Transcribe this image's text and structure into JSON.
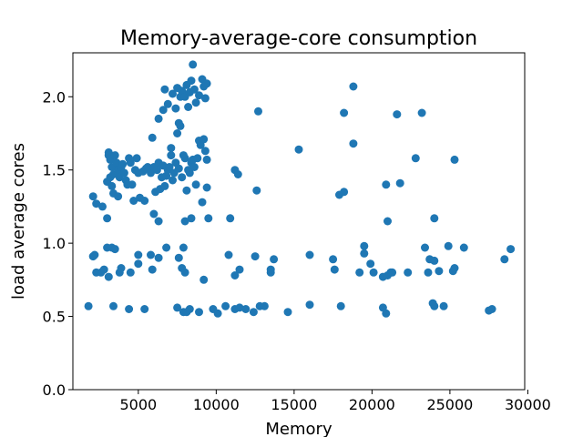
{
  "chart_data": {
    "type": "scatter",
    "title": "Memory-average-core consumption",
    "xlabel": "Memory",
    "ylabel": "load average cores",
    "xlim": [
      800,
      29800
    ],
    "ylim": [
      0.0,
      2.3
    ],
    "xticks": [
      5000,
      10000,
      15000,
      20000,
      25000,
      30000
    ],
    "yticks": [
      0.0,
      0.5,
      1.0,
      1.5,
      2.0
    ],
    "grid": false,
    "color": "#1f77b4",
    "series": [
      {
        "points": [
          [
            1800,
            0.57
          ],
          [
            2100,
            0.91
          ],
          [
            2200,
            0.92
          ],
          [
            2300,
            0.8
          ],
          [
            2600,
            0.8
          ],
          [
            2800,
            0.82
          ],
          [
            3100,
            0.77
          ],
          [
            3000,
            0.97
          ],
          [
            3300,
            0.97
          ],
          [
            3500,
            0.96
          ],
          [
            3400,
            0.57
          ],
          [
            3900,
            0.83
          ],
          [
            3800,
            0.8
          ],
          [
            4500,
            0.8
          ],
          [
            4400,
            0.55
          ],
          [
            5000,
            0.86
          ],
          [
            5000,
            0.92
          ],
          [
            5400,
            0.55
          ],
          [
            5900,
            0.82
          ],
          [
            5800,
            0.92
          ],
          [
            6300,
            0.9
          ],
          [
            6800,
            0.97
          ],
          [
            7600,
            0.9
          ],
          [
            7800,
            0.83
          ],
          [
            8000,
            0.8
          ],
          [
            7900,
            0.97
          ],
          [
            7500,
            0.56
          ],
          [
            7900,
            0.53
          ],
          [
            8100,
            0.53
          ],
          [
            8300,
            0.55
          ],
          [
            8900,
            0.53
          ],
          [
            9200,
            0.75
          ],
          [
            9800,
            0.55
          ],
          [
            10100,
            0.52
          ],
          [
            10600,
            0.57
          ],
          [
            10800,
            0.92
          ],
          [
            11200,
            0.55
          ],
          [
            11200,
            0.78
          ],
          [
            11500,
            0.82
          ],
          [
            11500,
            0.56
          ],
          [
            11900,
            0.55
          ],
          [
            12400,
            0.53
          ],
          [
            12500,
            0.91
          ],
          [
            12800,
            0.57
          ],
          [
            13100,
            0.57
          ],
          [
            13500,
            0.8
          ],
          [
            13500,
            0.82
          ],
          [
            13700,
            0.89
          ],
          [
            14600,
            0.53
          ],
          [
            16000,
            0.58
          ],
          [
            16000,
            0.92
          ],
          [
            17500,
            0.89
          ],
          [
            17600,
            0.82
          ],
          [
            18000,
            0.57
          ],
          [
            19200,
            0.8
          ],
          [
            19500,
            0.98
          ],
          [
            19500,
            0.93
          ],
          [
            19900,
            0.86
          ],
          [
            20100,
            0.8
          ],
          [
            20700,
            0.77
          ],
          [
            20700,
            0.56
          ],
          [
            20900,
            0.52
          ],
          [
            21000,
            0.78
          ],
          [
            21200,
            0.8
          ],
          [
            21300,
            0.8
          ],
          [
            22300,
            0.8
          ],
          [
            23400,
            0.97
          ],
          [
            23600,
            0.8
          ],
          [
            23700,
            0.89
          ],
          [
            23900,
            0.59
          ],
          [
            24000,
            0.57
          ],
          [
            24000,
            0.88
          ],
          [
            24300,
            0.81
          ],
          [
            24600,
            0.57
          ],
          [
            24900,
            0.98
          ],
          [
            25200,
            0.81
          ],
          [
            25300,
            0.83
          ],
          [
            25900,
            0.97
          ],
          [
            27500,
            0.54
          ],
          [
            27700,
            0.55
          ],
          [
            28500,
            0.89
          ],
          [
            28900,
            0.96
          ],
          [
            2100,
            1.32
          ],
          [
            2300,
            1.27
          ],
          [
            2700,
            1.25
          ],
          [
            3000,
            1.17
          ],
          [
            3000,
            1.42
          ],
          [
            3100,
            1.62
          ],
          [
            3100,
            1.6
          ],
          [
            3200,
            1.57
          ],
          [
            3200,
            1.45
          ],
          [
            3300,
            1.52
          ],
          [
            3300,
            1.39
          ],
          [
            3400,
            1.34
          ],
          [
            3400,
            1.47
          ],
          [
            3500,
            1.6
          ],
          [
            3600,
            1.55
          ],
          [
            3700,
            1.5
          ],
          [
            3700,
            1.32
          ],
          [
            3800,
            1.45
          ],
          [
            3900,
            1.52
          ],
          [
            4000,
            1.54
          ],
          [
            4100,
            1.48
          ],
          [
            4200,
            1.43
          ],
          [
            4300,
            1.4
          ],
          [
            4400,
            1.58
          ],
          [
            4500,
            1.55
          ],
          [
            4600,
            1.4
          ],
          [
            4700,
            1.29
          ],
          [
            4800,
            1.5
          ],
          [
            4900,
            1.58
          ],
          [
            5000,
            1.48
          ],
          [
            5100,
            1.31
          ],
          [
            5300,
            1.49
          ],
          [
            5400,
            1.29
          ],
          [
            5500,
            1.51
          ],
          [
            5600,
            1.52
          ],
          [
            5800,
            1.48
          ],
          [
            5900,
            1.72
          ],
          [
            6000,
            1.52
          ],
          [
            6000,
            1.2
          ],
          [
            6100,
            1.35
          ],
          [
            6200,
            1.5
          ],
          [
            6300,
            1.55
          ],
          [
            6300,
            1.15
          ],
          [
            6400,
            1.37
          ],
          [
            6500,
            1.45
          ],
          [
            6600,
            1.53
          ],
          [
            6700,
            1.39
          ],
          [
            6800,
            1.46
          ],
          [
            6900,
            1.5
          ],
          [
            7000,
            1.52
          ],
          [
            7100,
            1.65
          ],
          [
            7100,
            1.6
          ],
          [
            7200,
            1.43
          ],
          [
            7300,
            1.48
          ],
          [
            7400,
            1.55
          ],
          [
            7500,
            1.75
          ],
          [
            7600,
            1.51
          ],
          [
            7700,
            1.8
          ],
          [
            7800,
            1.45
          ],
          [
            7900,
            1.6
          ],
          [
            8000,
            1.58
          ],
          [
            8000,
            1.15
          ],
          [
            8100,
            1.36
          ],
          [
            8200,
            1.5
          ],
          [
            8300,
            1.48
          ],
          [
            8400,
            1.55
          ],
          [
            8400,
            1.17
          ],
          [
            8500,
            1.57
          ],
          [
            8600,
            1.52
          ],
          [
            8700,
            1.4
          ],
          [
            8800,
            1.58
          ],
          [
            8900,
            1.7
          ],
          [
            9000,
            1.67
          ],
          [
            9100,
            1.28
          ],
          [
            9200,
            1.71
          ],
          [
            9300,
            1.63
          ],
          [
            9400,
            1.57
          ],
          [
            9400,
            1.38
          ],
          [
            9500,
            1.17
          ],
          [
            10900,
            1.17
          ],
          [
            11200,
            1.5
          ],
          [
            11400,
            1.47
          ],
          [
            12600,
            1.36
          ],
          [
            15300,
            1.64
          ],
          [
            17900,
            1.33
          ],
          [
            18200,
            1.35
          ],
          [
            18800,
            1.68
          ],
          [
            20900,
            1.4
          ],
          [
            21000,
            1.15
          ],
          [
            21800,
            1.41
          ],
          [
            22800,
            1.58
          ],
          [
            24000,
            1.17
          ],
          [
            25300,
            1.57
          ],
          [
            6300,
            1.85
          ],
          [
            6600,
            1.91
          ],
          [
            6700,
            2.05
          ],
          [
            6900,
            1.95
          ],
          [
            7200,
            2.02
          ],
          [
            7400,
            1.92
          ],
          [
            7500,
            2.06
          ],
          [
            7600,
            1.82
          ],
          [
            7700,
            2.0
          ],
          [
            7800,
            2.04
          ],
          [
            7900,
            2.02
          ],
          [
            8000,
            2.0
          ],
          [
            8100,
            2.08
          ],
          [
            8200,
            1.93
          ],
          [
            8300,
            2.03
          ],
          [
            8400,
            2.11
          ],
          [
            8500,
            2.22
          ],
          [
            8600,
            2.05
          ],
          [
            8700,
            1.96
          ],
          [
            8900,
            2.01
          ],
          [
            9100,
            2.12
          ],
          [
            9200,
            2.07
          ],
          [
            9300,
            1.99
          ],
          [
            9400,
            2.09
          ],
          [
            12700,
            1.9
          ],
          [
            18200,
            1.89
          ],
          [
            18800,
            2.07
          ],
          [
            21600,
            1.88
          ],
          [
            23200,
            1.89
          ]
        ]
      }
    ]
  }
}
